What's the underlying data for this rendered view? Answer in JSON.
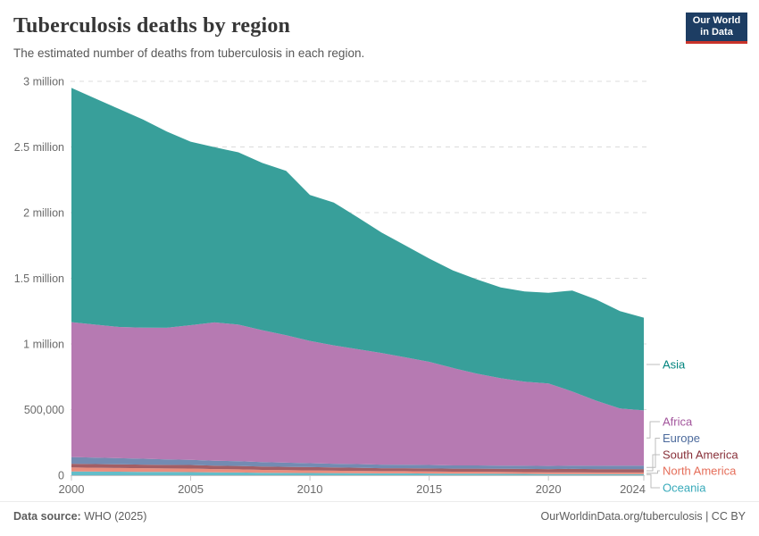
{
  "header": {
    "title": "Tuberculosis deaths by region",
    "subtitle": "The estimated number of deaths from tuberculosis in each region.",
    "logo": {
      "line1": "Our World",
      "line2": "in Data",
      "bg_color": "#1d3d63",
      "bar_color": "#c9332b",
      "text_color": "#ffffff"
    }
  },
  "footer": {
    "source_label": "Data source:",
    "source_value": " WHO (2025)",
    "credit": "OurWorldinData.org/tuberculosis | CC BY"
  },
  "chart_data": {
    "type": "area",
    "stacked": true,
    "title": "Tuberculosis deaths by region",
    "xlabel": "",
    "ylabel": "",
    "ylim": [
      0,
      3000000
    ],
    "grid": "horizontal-dashed",
    "legend_position": "right",
    "x": [
      2000,
      2001,
      2002,
      2003,
      2004,
      2005,
      2006,
      2007,
      2008,
      2009,
      2010,
      2011,
      2012,
      2013,
      2014,
      2015,
      2016,
      2017,
      2018,
      2019,
      2020,
      2021,
      2022,
      2023,
      2024
    ],
    "x_ticks": [
      {
        "value": 2000,
        "label": "2000"
      },
      {
        "value": 2005,
        "label": "2005"
      },
      {
        "value": 2010,
        "label": "2010"
      },
      {
        "value": 2015,
        "label": "2015"
      },
      {
        "value": 2020,
        "label": "2020"
      },
      {
        "value": 2024,
        "label": "2024"
      }
    ],
    "y_ticks": [
      {
        "value": 0,
        "label": "0"
      },
      {
        "value": 500000,
        "label": "500,000"
      },
      {
        "value": 1000000,
        "label": "1 million"
      },
      {
        "value": 1500000,
        "label": "1.5 million"
      },
      {
        "value": 2000000,
        "label": "2 million"
      },
      {
        "value": 2500000,
        "label": "2.5 million"
      },
      {
        "value": 3000000,
        "label": "3 million"
      }
    ],
    "stack_order_bottom_up": [
      "Oceania",
      "North America",
      "South America",
      "Europe",
      "Africa",
      "Asia"
    ],
    "series": [
      {
        "name": "Asia",
        "color": "#00847E",
        "fill": "#389F9A",
        "values": [
          1784000,
          1722000,
          1660000,
          1585000,
          1495000,
          1397000,
          1334000,
          1312000,
          1273000,
          1252000,
          1111000,
          1088000,
          1004000,
          918000,
          852000,
          786000,
          742000,
          717000,
          691000,
          688000,
          691000,
          769000,
          771000,
          742000,
          706000
        ]
      },
      {
        "name": "Africa",
        "color": "#A2559C",
        "fill": "#B67AB2",
        "values": [
          1027000,
          1013000,
          999000,
          998000,
          1002000,
          1025000,
          1053000,
          1040000,
          1004000,
          970000,
          931000,
          901000,
          875000,
          850000,
          818000,
          786000,
          742000,
          699000,
          666000,
          640000,
          628000,
          565000,
          496000,
          435000,
          421000
        ]
      },
      {
        "name": "Europe",
        "color": "#4C6A9C",
        "fill": "#738BB2",
        "values": [
          51000,
          49000,
          47000,
          45000,
          42000,
          40000,
          38000,
          36000,
          34000,
          32000,
          30000,
          29000,
          28000,
          27000,
          26000,
          26000,
          25000,
          25000,
          24000,
          24000,
          24000,
          25000,
          25000,
          26000,
          26000
        ]
      },
      {
        "name": "South America",
        "color": "#883039",
        "fill": "#A25E65",
        "values": [
          29000,
          28000,
          28000,
          27000,
          27000,
          27000,
          26000,
          26000,
          26000,
          25000,
          25000,
          24000,
          24000,
          23000,
          23000,
          23000,
          23000,
          23000,
          24000,
          24000,
          25000,
          26000,
          26000,
          26000,
          26000
        ]
      },
      {
        "name": "North America",
        "color": "#E56E5A",
        "fill": "#EB8E7E",
        "values": [
          30000,
          29000,
          28000,
          28000,
          27000,
          27000,
          25000,
          24000,
          22000,
          21000,
          20000,
          19000,
          18000,
          17000,
          17000,
          16000,
          15000,
          15000,
          14000,
          14000,
          13000,
          13000,
          12000,
          12000,
          12000
        ]
      },
      {
        "name": "Oceania",
        "color": "#38AABA",
        "fill": "#64BDC9",
        "values": [
          29000,
          28000,
          27000,
          26000,
          25000,
          24000,
          22000,
          21000,
          19000,
          18000,
          17000,
          16000,
          15000,
          14000,
          14000,
          13000,
          12000,
          12000,
          11000,
          10000,
          9000,
          9000,
          9000,
          9000,
          9000
        ]
      }
    ]
  }
}
